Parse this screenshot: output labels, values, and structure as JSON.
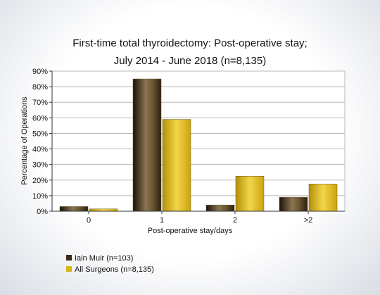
{
  "chart_data": {
    "type": "bar",
    "title": "First-time total thyroidectomy: Post-operative stay;",
    "subtitle": "July 2014 - June 2018 (n=8,135)",
    "xlabel": "Post-operative stay/days",
    "ylabel": "Percentage of Operations",
    "categories": [
      "0",
      "1",
      "2",
      ">2"
    ],
    "y_ticks": [
      "0%",
      "10%",
      "20%",
      "30%",
      "40%",
      "50%",
      "60%",
      "70%",
      "80%",
      "90%"
    ],
    "ylim": [
      0,
      90
    ],
    "grid": true,
    "legend_position": "bottom-left",
    "series": [
      {
        "name": "Iain Muir (n=103)",
        "values": [
          3,
          85,
          4,
          9
        ],
        "color": "#3a2c16"
      },
      {
        "name": "All Surgeons (n=8,135)",
        "values": [
          1.5,
          59,
          22.5,
          17.5
        ],
        "color": "#d9b413"
      }
    ]
  }
}
